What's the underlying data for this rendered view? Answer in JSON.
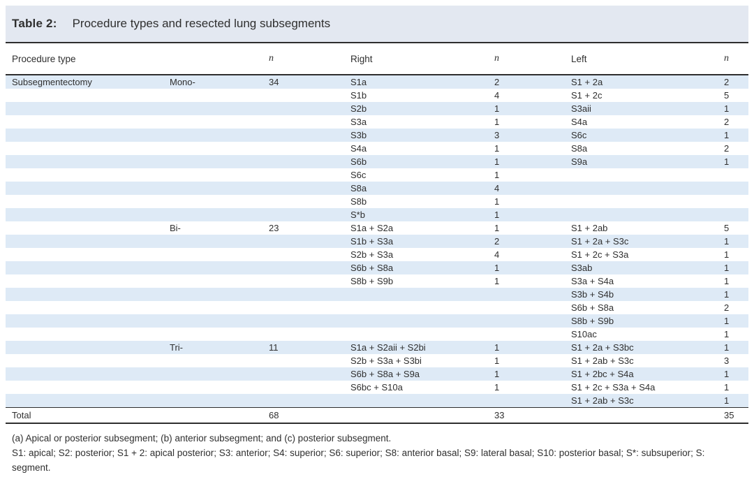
{
  "title": {
    "label": "Table 2:",
    "caption": "Procedure types and resected lung subsegments"
  },
  "colors": {
    "band": "#e3e8f1",
    "stripe": "#deeaf6",
    "rule": "#2e2e2e",
    "text": "#2f2f2f"
  },
  "table": {
    "headers": [
      "Procedure type",
      "",
      "n",
      "Right",
      "n",
      "Left",
      "n"
    ],
    "rows": [
      {
        "cells": [
          "Subsegmentectomy",
          "Mono-",
          "34",
          "S1a",
          "2",
          "S1 + 2a",
          "2"
        ]
      },
      {
        "cells": [
          "",
          "",
          "",
          "S1b",
          "4",
          "S1 + 2c",
          "5"
        ]
      },
      {
        "cells": [
          "",
          "",
          "",
          "S2b",
          "1",
          "S3aii",
          "1"
        ]
      },
      {
        "cells": [
          "",
          "",
          "",
          "S3a",
          "1",
          "S4a",
          "2"
        ]
      },
      {
        "cells": [
          "",
          "",
          "",
          "S3b",
          "3",
          "S6c",
          "1"
        ]
      },
      {
        "cells": [
          "",
          "",
          "",
          "S4a",
          "1",
          "S8a",
          "2"
        ]
      },
      {
        "cells": [
          "",
          "",
          "",
          "S6b",
          "1",
          "S9a",
          "1"
        ]
      },
      {
        "cells": [
          "",
          "",
          "",
          "S6c",
          "1",
          "",
          ""
        ]
      },
      {
        "cells": [
          "",
          "",
          "",
          "S8a",
          "4",
          "",
          ""
        ]
      },
      {
        "cells": [
          "",
          "",
          "",
          "S8b",
          "1",
          "",
          ""
        ]
      },
      {
        "cells": [
          "",
          "",
          "",
          "S*b",
          "1",
          "",
          ""
        ]
      },
      {
        "cells": [
          "",
          "Bi-",
          "23",
          "S1a + S2a",
          "1",
          "S1 + 2ab",
          "5"
        ]
      },
      {
        "cells": [
          "",
          "",
          "",
          "S1b + S3a",
          "2",
          "S1 + 2a + S3c",
          "1"
        ]
      },
      {
        "cells": [
          "",
          "",
          "",
          "S2b + S3a",
          "4",
          "S1 + 2c + S3a",
          "1"
        ]
      },
      {
        "cells": [
          "",
          "",
          "",
          "S6b + S8a",
          "1",
          "S3ab",
          "1"
        ]
      },
      {
        "cells": [
          "",
          "",
          "",
          "S8b + S9b",
          "1",
          "S3a + S4a",
          "1"
        ]
      },
      {
        "cells": [
          "",
          "",
          "",
          "",
          "",
          "S3b + S4b",
          "1"
        ]
      },
      {
        "cells": [
          "",
          "",
          "",
          "",
          "",
          "S6b + S8a",
          "2"
        ]
      },
      {
        "cells": [
          "",
          "",
          "",
          "",
          "",
          "S8b + S9b",
          "1"
        ]
      },
      {
        "cells": [
          "",
          "",
          "",
          "",
          "",
          "S10ac",
          "1"
        ]
      },
      {
        "cells": [
          "",
          "Tri-",
          "11",
          "S1a + S2aii + S2bi",
          "1",
          "S1 + 2a + S3bc",
          "1"
        ]
      },
      {
        "cells": [
          "",
          "",
          "",
          "S2b + S3a + S3bi",
          "1",
          "S1 + 2ab + S3c",
          "3"
        ]
      },
      {
        "cells": [
          "",
          "",
          "",
          "S6b + S8a + S9a",
          "1",
          "S1 + 2bc + S4a",
          "1"
        ]
      },
      {
        "cells": [
          "",
          "",
          "",
          "S6bc + S10a",
          "1",
          "S1 + 2c + S3a + S4a",
          "1"
        ]
      },
      {
        "cells": [
          "",
          "",
          "",
          "",
          "",
          "S1 + 2ab + S3c",
          "1"
        ]
      }
    ],
    "total": {
      "cells": [
        "Total",
        "",
        "68",
        "",
        "33",
        "",
        "35"
      ]
    }
  },
  "footnotes": [
    "(a) Apical or posterior subsegment; (b) anterior subsegment; and (c) posterior subsegment.",
    "S1: apical; S2: posterior; S1 + 2: apical posterior; S3: anterior; S4: superior; S6: superior; S8: anterior basal; S9: lateral basal; S10: posterior basal; S*: subsuperior; S: segment."
  ]
}
